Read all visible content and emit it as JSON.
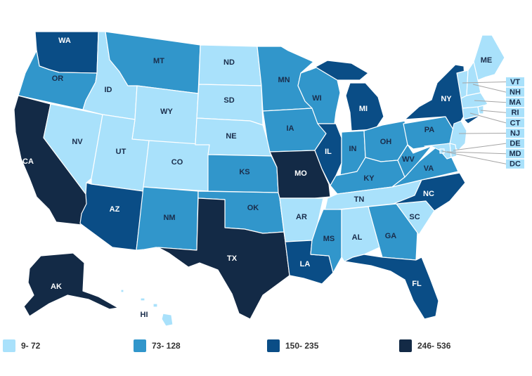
{
  "colors": {
    "c1": "#a9e1fb",
    "c2": "#3196cb",
    "c3": "#0a4d86",
    "c4": "#132a46",
    "border": "#ffffff",
    "ne_leader": "#a5a5a5"
  },
  "legend": [
    {
      "label": "9- 72",
      "color": "#a9e1fb"
    },
    {
      "label": "73- 128",
      "color": "#3196cb"
    },
    {
      "label": "150- 235",
      "color": "#0a4d86"
    },
    {
      "label": "246- 536",
      "color": "#132a46"
    }
  ],
  "states": [
    {
      "abbr": "WA",
      "bin": 3
    },
    {
      "abbr": "OR",
      "bin": 2
    },
    {
      "abbr": "CA",
      "bin": 4
    },
    {
      "abbr": "NV",
      "bin": 1
    },
    {
      "abbr": "ID",
      "bin": 1
    },
    {
      "abbr": "MT",
      "bin": 2
    },
    {
      "abbr": "WY",
      "bin": 1
    },
    {
      "abbr": "UT",
      "bin": 1
    },
    {
      "abbr": "AZ",
      "bin": 3
    },
    {
      "abbr": "CO",
      "bin": 1
    },
    {
      "abbr": "NM",
      "bin": 2
    },
    {
      "abbr": "ND",
      "bin": 1
    },
    {
      "abbr": "SD",
      "bin": 1
    },
    {
      "abbr": "NE",
      "bin": 1
    },
    {
      "abbr": "KS",
      "bin": 2
    },
    {
      "abbr": "OK",
      "bin": 2
    },
    {
      "abbr": "TX",
      "bin": 4
    },
    {
      "abbr": "MN",
      "bin": 2
    },
    {
      "abbr": "IA",
      "bin": 2
    },
    {
      "abbr": "MO",
      "bin": 4
    },
    {
      "abbr": "AR",
      "bin": 1
    },
    {
      "abbr": "LA",
      "bin": 3
    },
    {
      "abbr": "WI",
      "bin": 2
    },
    {
      "abbr": "IL",
      "bin": 3
    },
    {
      "abbr": "MI",
      "bin": 3
    },
    {
      "abbr": "IN",
      "bin": 2
    },
    {
      "abbr": "OH",
      "bin": 2
    },
    {
      "abbr": "KY",
      "bin": 2
    },
    {
      "abbr": "TN",
      "bin": 1
    },
    {
      "abbr": "MS",
      "bin": 2
    },
    {
      "abbr": "AL",
      "bin": 1
    },
    {
      "abbr": "GA",
      "bin": 2
    },
    {
      "abbr": "FL",
      "bin": 3
    },
    {
      "abbr": "SC",
      "bin": 1
    },
    {
      "abbr": "NC",
      "bin": 3
    },
    {
      "abbr": "VA",
      "bin": 2
    },
    {
      "abbr": "WV",
      "bin": 2
    },
    {
      "abbr": "PA",
      "bin": 2
    },
    {
      "abbr": "NY",
      "bin": 3
    },
    {
      "abbr": "ME",
      "bin": 1
    },
    {
      "abbr": "AK",
      "bin": 4
    },
    {
      "abbr": "HI",
      "bin": 1
    }
  ],
  "ne_states": [
    {
      "abbr": "VT",
      "bin": 1
    },
    {
      "abbr": "NH",
      "bin": 1
    },
    {
      "abbr": "MA",
      "bin": 1
    },
    {
      "abbr": "RI",
      "bin": 1
    },
    {
      "abbr": "CT",
      "bin": 1
    },
    {
      "abbr": "NJ",
      "bin": 1
    },
    {
      "abbr": "DE",
      "bin": 1
    },
    {
      "abbr": "MD",
      "bin": 1
    },
    {
      "abbr": "DC",
      "bin": 1
    }
  ]
}
